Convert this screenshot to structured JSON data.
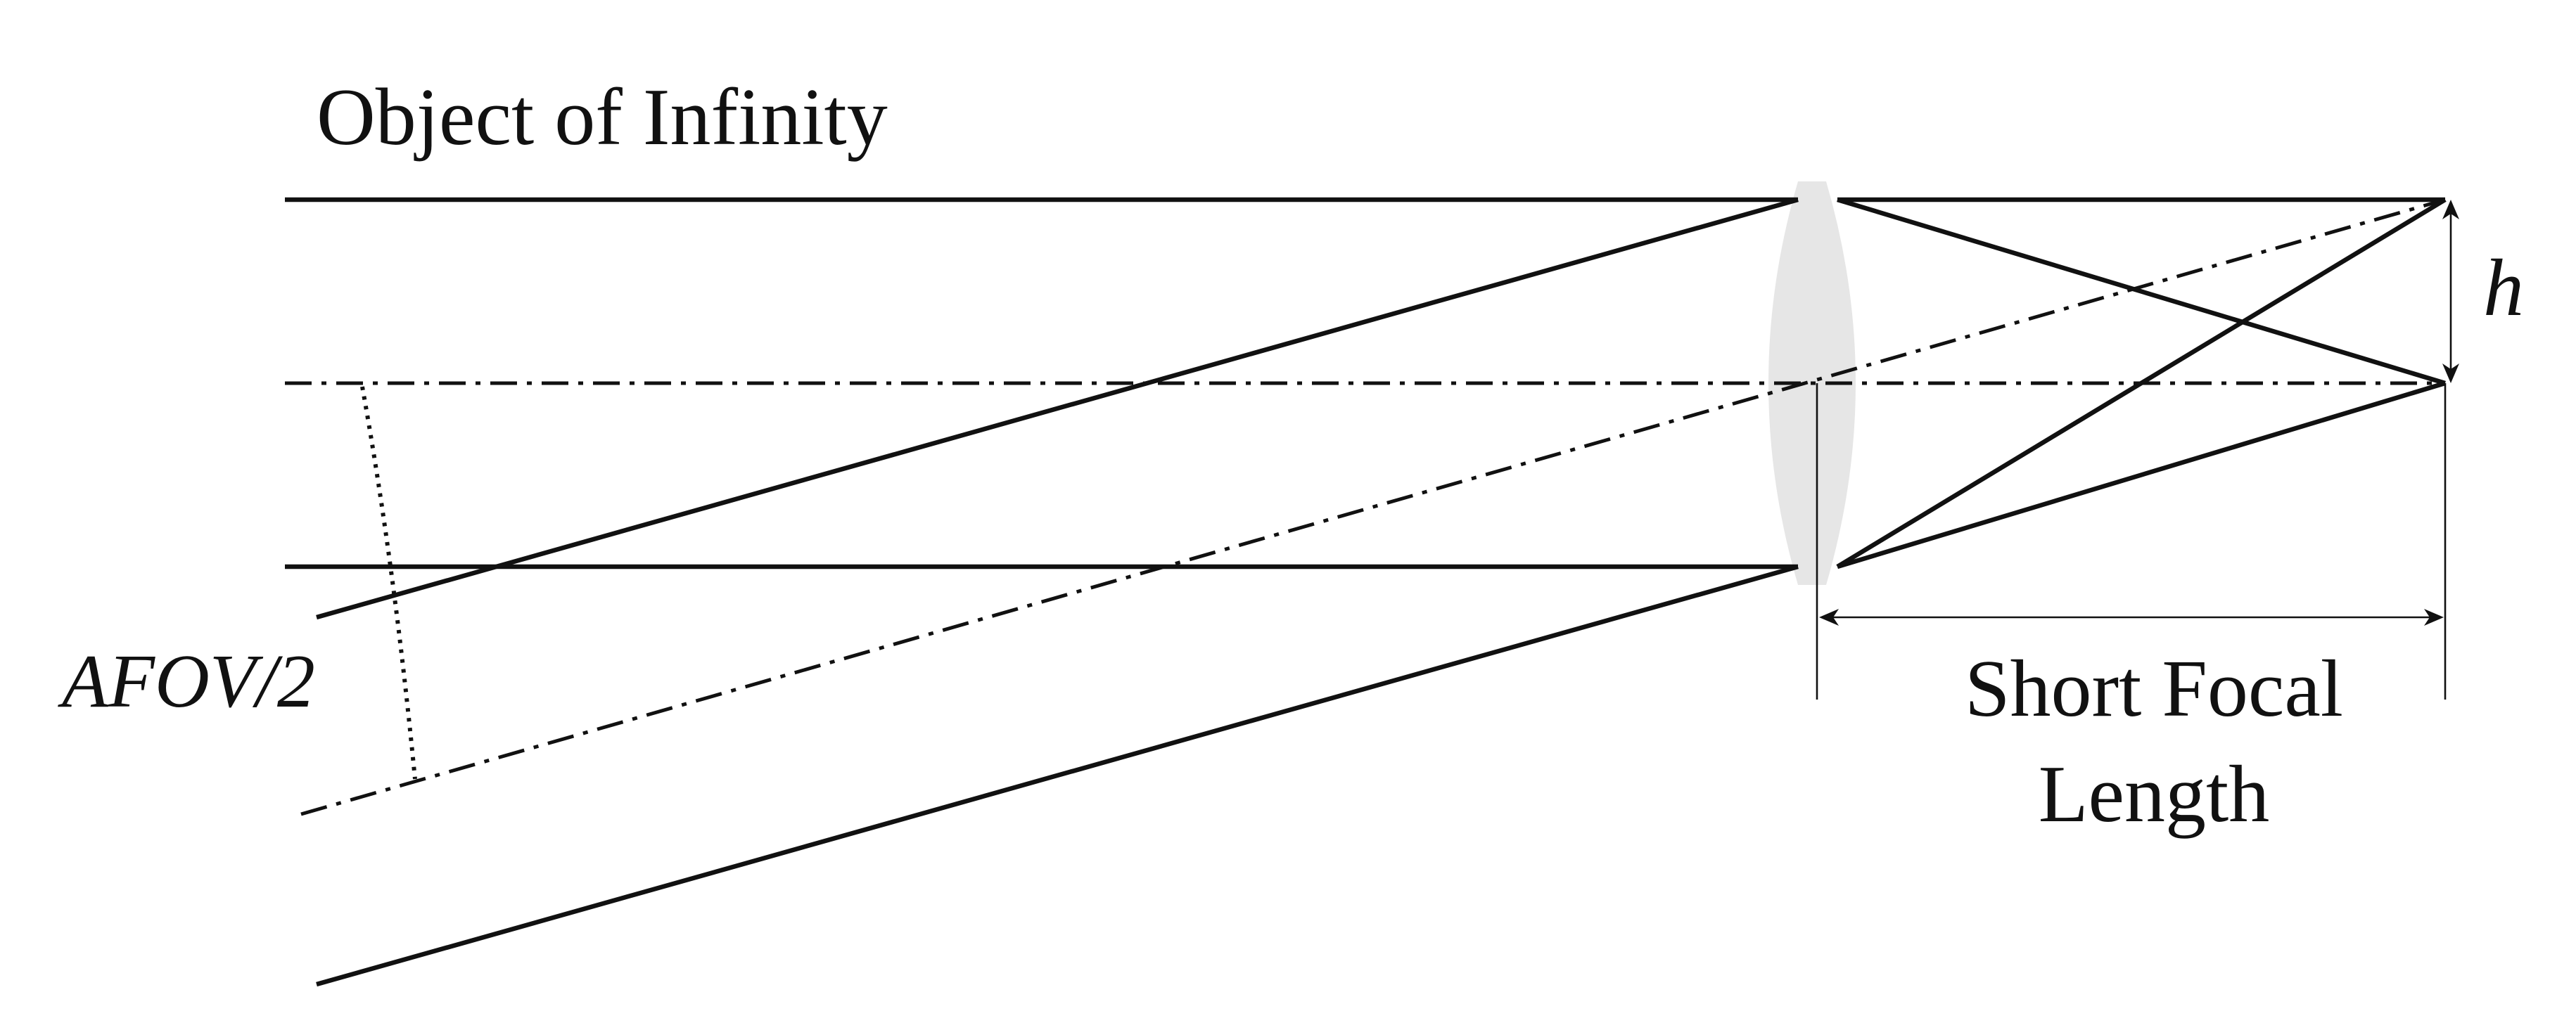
{
  "diagram": {
    "title": "Object of Infinity",
    "angle_label": "AFOV/2",
    "image_height_label": "h",
    "focal_length_label_line1": "Short Focal",
    "focal_length_label_line2": "Length",
    "lens_color": "#e6e6e6",
    "line_color": "#111111"
  }
}
